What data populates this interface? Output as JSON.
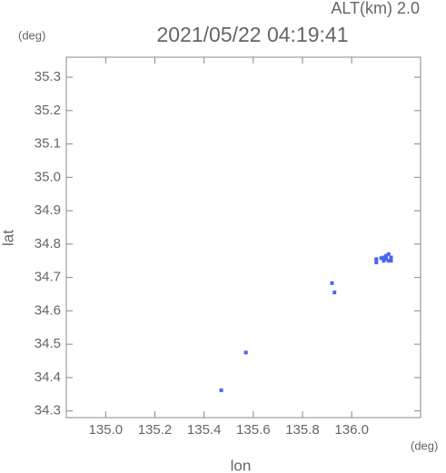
{
  "chart_data": {
    "type": "scatter",
    "title": "2021/05/22 04:19:41",
    "subtitle": "ALT(km) 2.0",
    "x_label": "lon",
    "y_label": "lat",
    "x_unit": "(deg)",
    "y_unit": "(deg)",
    "xlim": [
      134.84,
      136.28
    ],
    "ylim": [
      34.28,
      35.36
    ],
    "xticks": [
      {
        "value": 135.0,
        "label": "135.0"
      },
      135.2,
      135.4,
      135.6,
      135.8,
      {
        "value": 136.0,
        "label": "136.0"
      }
    ],
    "yticks": [
      34.3,
      34.4,
      34.5,
      34.6,
      34.7,
      34.8,
      34.9,
      {
        "value": 35.0,
        "label": "35.0"
      },
      35.1,
      35.2,
      35.3
    ],
    "series": [
      {
        "color": "#4a66f0",
        "x": [
          136.13,
          136.14,
          136.15,
          136.16,
          136.13,
          136.15,
          136.14,
          136.16,
          136.12,
          136.1,
          136.1,
          135.92,
          135.93,
          135.57,
          135.47
        ],
        "y": [
          34.76,
          34.765,
          34.77,
          34.76,
          34.75,
          34.75,
          34.755,
          34.75,
          34.758,
          34.755,
          34.745,
          34.683,
          34.655,
          34.475,
          34.362
        ]
      }
    ]
  }
}
